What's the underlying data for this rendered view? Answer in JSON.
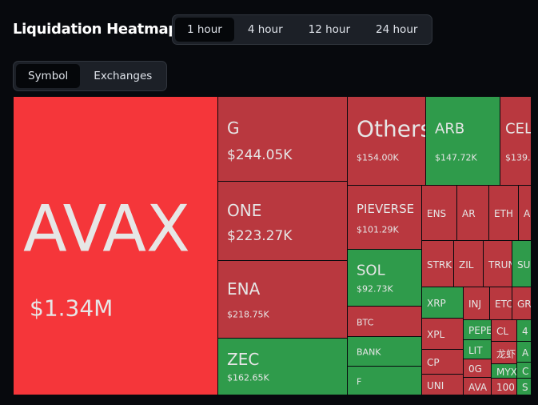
{
  "header": {
    "title": "Liquidation Heatmap"
  },
  "time_tabs": [
    "1 hour",
    "4 hour",
    "12 hour",
    "24 hour"
  ],
  "view_tabs": [
    "Symbol",
    "Exchanges"
  ],
  "tiles": [
    {
      "label": "AVAX",
      "value": "$1.34M"
    },
    {
      "label": "G",
      "value": "$244.05K"
    },
    {
      "label": "ONE",
      "value": "$223.27K"
    },
    {
      "label": "ENA",
      "value": "$218.75K"
    },
    {
      "label": "ZEC",
      "value": "$162.65K"
    },
    {
      "label": "Others",
      "value": "$154.00K"
    },
    {
      "label": "ARB",
      "value": "$147.72K"
    },
    {
      "label": "CEL",
      "value": "$139."
    },
    {
      "label": "PIEVERSE",
      "value": "$101.29K"
    },
    {
      "label": "SOL",
      "value": "$92.73K"
    },
    {
      "label": "BTC"
    },
    {
      "label": "BANK"
    },
    {
      "label": "F"
    },
    {
      "label": "ENS"
    },
    {
      "label": "AR"
    },
    {
      "label": "ETH"
    },
    {
      "label": "A"
    },
    {
      "label": "STRK"
    },
    {
      "label": "ZIL"
    },
    {
      "label": "TRUN"
    },
    {
      "label": "SU"
    },
    {
      "label": "XRP"
    },
    {
      "label": "INJ"
    },
    {
      "label": "ETC"
    },
    {
      "label": "GR"
    },
    {
      "label": "XPL"
    },
    {
      "label": "CP"
    },
    {
      "label": "UNI"
    },
    {
      "label": "PEPE"
    },
    {
      "label": "CL"
    },
    {
      "label": "4"
    },
    {
      "label": "LIT"
    },
    {
      "label": "龙虾"
    },
    {
      "label": "A"
    },
    {
      "label": "0G"
    },
    {
      "label": "MYX"
    },
    {
      "label": "C"
    },
    {
      "label": "AVA"
    },
    {
      "label": "100"
    },
    {
      "label": "S"
    }
  ]
}
